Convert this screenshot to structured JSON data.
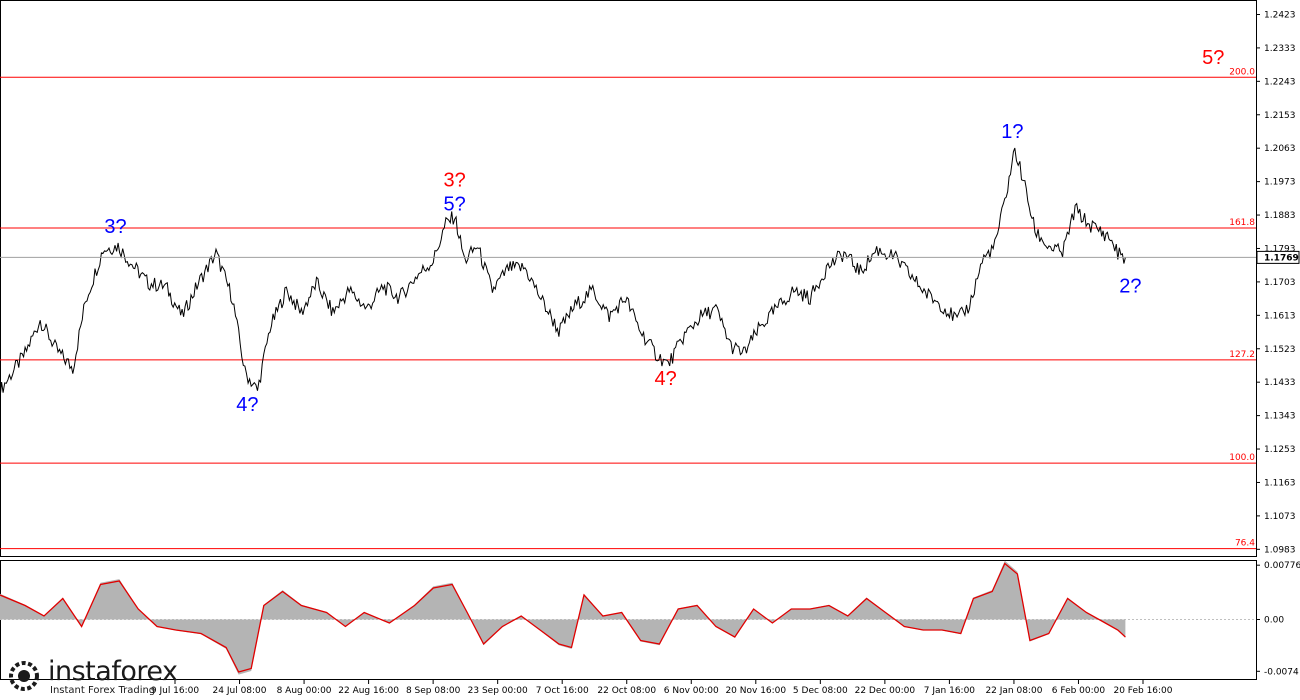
{
  "chart_data": [
    {
      "type": "line",
      "symbol_price_scale": "main",
      "y_ticks": [
        "1.2423",
        "1.2333",
        "1.2243",
        "1.2153",
        "1.2063",
        "1.1973",
        "1.1883",
        "1.1793",
        "1.1703",
        "1.1613",
        "1.1523",
        "1.1433",
        "1.1343",
        "1.1253",
        "1.1163",
        "1.1073",
        "1.0983"
      ],
      "ylim": [
        1.0965,
        1.2462
      ],
      "current_price": "1.1769",
      "x_labels": [
        "9 Jul 16:00",
        "24 Jul 08:00",
        "8 Aug 00:00",
        "22 Aug 16:00",
        "8 Sep 08:00",
        "23 Sep 00:00",
        "7 Oct 16:00",
        "22 Oct 08:00",
        "6 Nov 00:00",
        "20 Nov 16:00",
        "5 Dec 08:00",
        "22 Dec 00:00",
        "7 Jan 16:00",
        "22 Jan 08:00",
        "6 Feb 00:00",
        "20 Feb 16:00"
      ],
      "fib_levels": [
        {
          "label": "200.0",
          "price": 1.2254
        },
        {
          "label": "161.8",
          "price": 1.1848
        },
        {
          "label": "127.2",
          "price": 1.1493
        },
        {
          "label": "100.0",
          "price": 1.1215
        },
        {
          "label": "76.4",
          "price": 1.0985
        }
      ],
      "price_path": [
        [
          0,
          1.141
        ],
        [
          0.02,
          1.151
        ],
        [
          0.032,
          1.16
        ],
        [
          0.045,
          1.152
        ],
        [
          0.058,
          1.147
        ],
        [
          0.068,
          1.165
        ],
        [
          0.082,
          1.179
        ],
        [
          0.094,
          1.18
        ],
        [
          0.105,
          1.175
        ],
        [
          0.118,
          1.17
        ],
        [
          0.132,
          1.169
        ],
        [
          0.145,
          1.161
        ],
        [
          0.158,
          1.17
        ],
        [
          0.172,
          1.178
        ],
        [
          0.185,
          1.166
        ],
        [
          0.195,
          1.146
        ],
        [
          0.205,
          1.141
        ],
        [
          0.215,
          1.158
        ],
        [
          0.228,
          1.168
        ],
        [
          0.24,
          1.162
        ],
        [
          0.252,
          1.17
        ],
        [
          0.265,
          1.162
        ],
        [
          0.278,
          1.168
        ],
        [
          0.292,
          1.163
        ],
        [
          0.305,
          1.169
        ],
        [
          0.318,
          1.166
        ],
        [
          0.332,
          1.172
        ],
        [
          0.345,
          1.176
        ],
        [
          0.355,
          1.186
        ],
        [
          0.362,
          1.188
        ],
        [
          0.37,
          1.176
        ],
        [
          0.38,
          1.18
        ],
        [
          0.392,
          1.168
        ],
        [
          0.405,
          1.174
        ],
        [
          0.418,
          1.174
        ],
        [
          0.432,
          1.165
        ],
        [
          0.445,
          1.157
        ],
        [
          0.458,
          1.164
        ],
        [
          0.472,
          1.168
        ],
        [
          0.485,
          1.161
        ],
        [
          0.498,
          1.166
        ],
        [
          0.51,
          1.157
        ],
        [
          0.522,
          1.151
        ],
        [
          0.532,
          1.148
        ],
        [
          0.545,
          1.156
        ],
        [
          0.558,
          1.161
        ],
        [
          0.57,
          1.163
        ],
        [
          0.582,
          1.153
        ],
        [
          0.592,
          1.151
        ],
        [
          0.605,
          1.158
        ],
        [
          0.618,
          1.163
        ],
        [
          0.632,
          1.168
        ],
        [
          0.645,
          1.166
        ],
        [
          0.658,
          1.174
        ],
        [
          0.672,
          1.178
        ],
        [
          0.685,
          1.173
        ],
        [
          0.698,
          1.179
        ],
        [
          0.712,
          1.177
        ],
        [
          0.725,
          1.172
        ],
        [
          0.738,
          1.167
        ],
        [
          0.75,
          1.164
        ],
        [
          0.762,
          1.16
        ],
        [
          0.772,
          1.164
        ],
        [
          0.782,
          1.176
        ],
        [
          0.792,
          1.18
        ],
        [
          0.8,
          1.192
        ],
        [
          0.808,
          1.206
        ],
        [
          0.816,
          1.196
        ],
        [
          0.824,
          1.184
        ],
        [
          0.834,
          1.18
        ],
        [
          0.846,
          1.178
        ],
        [
          0.856,
          1.19
        ],
        [
          0.866,
          1.186
        ],
        [
          0.876,
          1.184
        ],
        [
          0.884,
          1.182
        ],
        [
          0.89,
          1.178
        ],
        [
          0.896,
          1.1769
        ]
      ],
      "wave_labels": [
        {
          "text": "3?",
          "color": "#0000ff",
          "at": [
            0.092,
            1.1835
          ]
        },
        {
          "text": "4?",
          "color": "#0000ff",
          "at": [
            0.197,
            1.1355
          ]
        },
        {
          "text": "3?",
          "color": "#ff0000",
          "at": [
            0.362,
            1.196
          ]
        },
        {
          "text": "5?",
          "color": "#0000ff",
          "at": [
            0.362,
            1.1895
          ]
        },
        {
          "text": "4?",
          "color": "#ff0000",
          "at": [
            0.53,
            1.1425
          ]
        },
        {
          "text": "1?",
          "color": "#0000ff",
          "at": [
            0.806,
            1.209
          ]
        },
        {
          "text": "2?",
          "color": "#0000ff",
          "at": [
            0.9,
            1.1675
          ]
        },
        {
          "text": "5?",
          "color": "#ff0000",
          "at": [
            0.966,
            1.229
          ]
        }
      ]
    },
    {
      "type": "area",
      "symbol_price_scale": "oscillator",
      "y_ticks": [
        "0.00776",
        "0.00",
        "-0.0074"
      ],
      "ylim": [
        -0.0085,
        0.0085
      ],
      "osc_path": [
        [
          0,
          0.0035
        ],
        [
          0.02,
          0.002
        ],
        [
          0.035,
          0.0005
        ],
        [
          0.05,
          0.003
        ],
        [
          0.065,
          -0.001
        ],
        [
          0.08,
          0.005
        ],
        [
          0.095,
          0.0055
        ],
        [
          0.11,
          0.0015
        ],
        [
          0.125,
          -0.001
        ],
        [
          0.14,
          -0.0015
        ],
        [
          0.16,
          -0.002
        ],
        [
          0.18,
          -0.004
        ],
        [
          0.19,
          -0.0075
        ],
        [
          0.2,
          -0.007
        ],
        [
          0.21,
          0.002
        ],
        [
          0.225,
          0.004
        ],
        [
          0.24,
          0.002
        ],
        [
          0.26,
          0.001
        ],
        [
          0.275,
          -0.001
        ],
        [
          0.29,
          0.001
        ],
        [
          0.31,
          -0.0005
        ],
        [
          0.33,
          0.002
        ],
        [
          0.345,
          0.0045
        ],
        [
          0.36,
          0.005
        ],
        [
          0.372,
          0.001
        ],
        [
          0.385,
          -0.0035
        ],
        [
          0.4,
          -0.001
        ],
        [
          0.415,
          0.0005
        ],
        [
          0.43,
          -0.0015
        ],
        [
          0.445,
          -0.0035
        ],
        [
          0.455,
          -0.004
        ],
        [
          0.465,
          0.0035
        ],
        [
          0.48,
          0.0005
        ],
        [
          0.495,
          0.001
        ],
        [
          0.51,
          -0.003
        ],
        [
          0.525,
          -0.0035
        ],
        [
          0.54,
          0.0015
        ],
        [
          0.555,
          0.002
        ],
        [
          0.57,
          -0.001
        ],
        [
          0.585,
          -0.0025
        ],
        [
          0.6,
          0.0015
        ],
        [
          0.615,
          -0.0005
        ],
        [
          0.63,
          0.0015
        ],
        [
          0.645,
          0.0015
        ],
        [
          0.66,
          0.002
        ],
        [
          0.675,
          0.0005
        ],
        [
          0.69,
          0.003
        ],
        [
          0.705,
          0.001
        ],
        [
          0.72,
          -0.001
        ],
        [
          0.735,
          -0.0015
        ],
        [
          0.75,
          -0.0015
        ],
        [
          0.765,
          -0.002
        ],
        [
          0.775,
          0.003
        ],
        [
          0.79,
          0.004
        ],
        [
          0.8,
          0.008
        ],
        [
          0.81,
          0.0065
        ],
        [
          0.82,
          -0.003
        ],
        [
          0.835,
          -0.002
        ],
        [
          0.85,
          0.003
        ],
        [
          0.865,
          0.001
        ],
        [
          0.88,
          -0.0005
        ],
        [
          0.89,
          -0.0015
        ],
        [
          0.896,
          -0.0025
        ]
      ]
    }
  ],
  "current_price_label": "1.1769",
  "logo": {
    "brand": "instaforex",
    "tagline": "Instant Forex Trading"
  }
}
